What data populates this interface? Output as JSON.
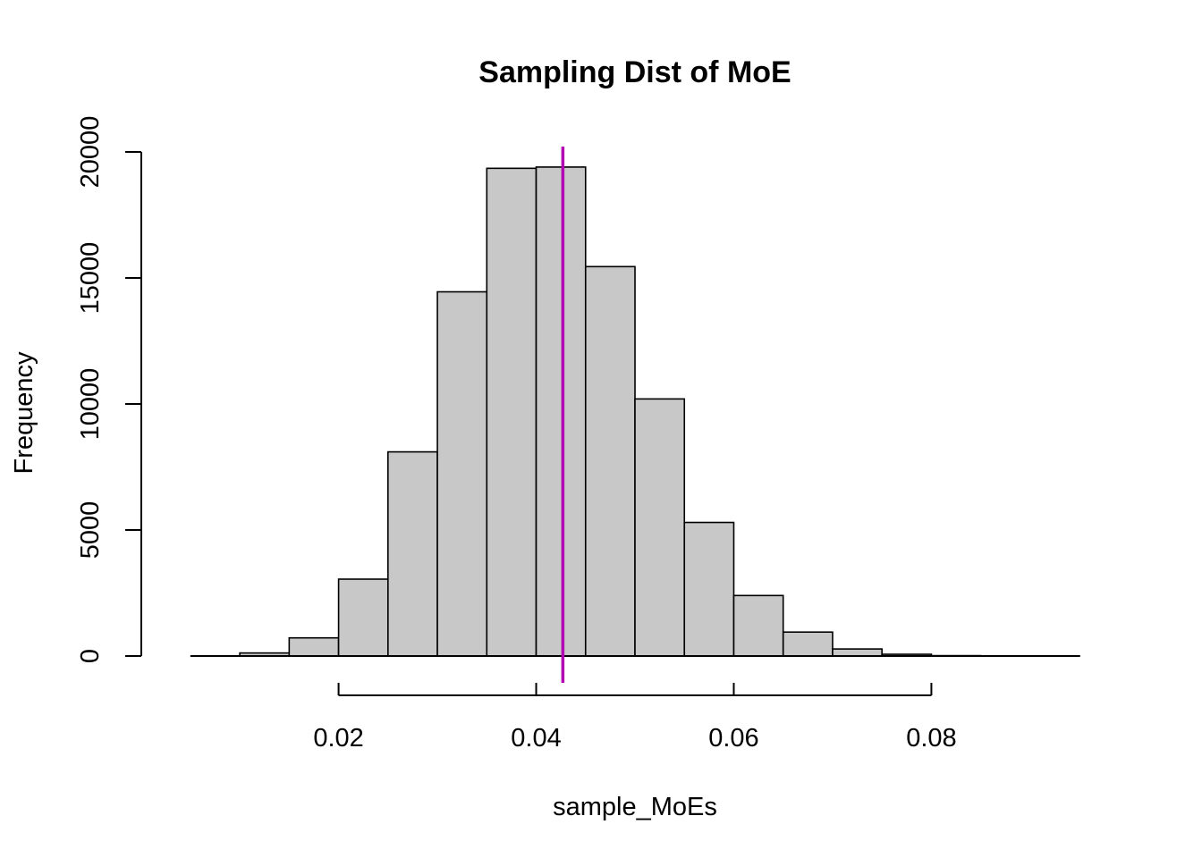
{
  "chart_data": {
    "type": "bar",
    "subtype": "histogram",
    "title": "Sampling Dist of MoE",
    "xlabel": "sample_MoEs",
    "ylabel": "Frequency",
    "bin_edges": [
      0.005,
      0.01,
      0.015,
      0.02,
      0.025,
      0.03,
      0.035,
      0.04,
      0.045,
      0.05,
      0.055,
      0.06,
      0.065,
      0.07,
      0.075,
      0.08,
      0.085,
      0.09,
      0.095
    ],
    "values": [
      0,
      120,
      720,
      3050,
      8100,
      14450,
      19350,
      19400,
      15450,
      10200,
      5300,
      2400,
      950,
      280,
      70,
      15,
      4,
      1
    ],
    "x_ticks": [
      0.02,
      0.04,
      0.06,
      0.08
    ],
    "x_tick_labels": [
      "0.02",
      "0.04",
      "0.06",
      "0.08"
    ],
    "y_ticks": [
      0,
      5000,
      10000,
      15000,
      20000
    ],
    "y_tick_labels": [
      "0",
      "5000",
      "10000",
      "15000",
      "20000"
    ],
    "xlim": [
      0.0013,
      0.0987
    ],
    "ylim": [
      -780,
      20780
    ],
    "grid": false,
    "vline": {
      "x": 0.0427,
      "color": "#b300b3"
    },
    "bar_fill": "#c8c8c8",
    "bar_edge": "#000000"
  }
}
